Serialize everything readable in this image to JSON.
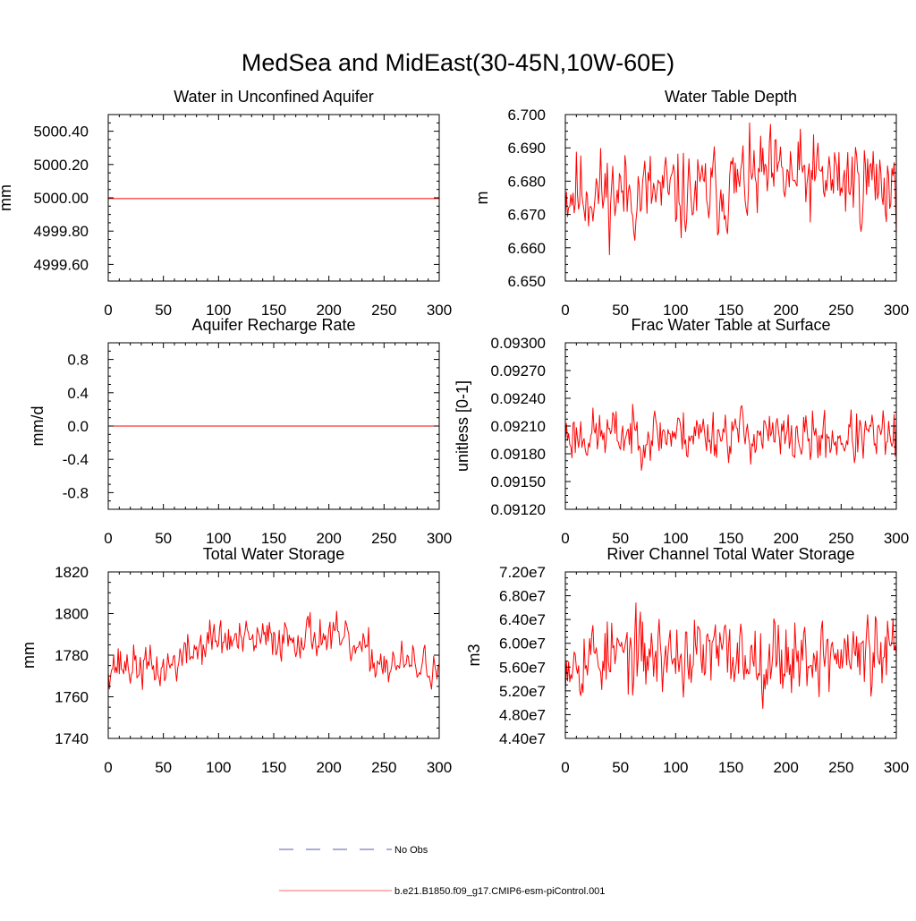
{
  "figure": {
    "title": "MedSea and MidEast(30-45N,10W-60E)"
  },
  "legend": {
    "entries": [
      {
        "label": "No Obs",
        "style": "dashed",
        "color": "#5a5aa8"
      },
      {
        "label": "b.e21.B1850.f09_g17.CMIP6-esm-piControl.001",
        "style": "solid",
        "color": "#ff6b6b"
      }
    ]
  },
  "chart_data": [
    {
      "type": "line",
      "title": "Water in Unconfined Aquifer",
      "ylabel": "mm",
      "xlim": [
        0,
        300
      ],
      "ylim": [
        4999.5,
        5000.5
      ],
      "xticks": [
        0,
        50,
        100,
        150,
        200,
        250,
        300
      ],
      "xtick_labels": [
        "0",
        "50",
        "100",
        "150",
        "200",
        "250",
        "300"
      ],
      "yticks": [
        4999.6,
        4999.8,
        5000.0,
        5000.2,
        5000.4
      ],
      "ytick_labels": [
        "4999.60",
        "4999.80",
        "5000.00",
        "5000.20",
        "5000.40"
      ],
      "series": [
        {
          "name": "b.e21.B1850.f09_g17.CMIP6-esm-piControl.001",
          "color": "#ff0000",
          "generator": {
            "kind": "constant",
            "mean": 4999.995,
            "n": 301
          }
        }
      ]
    },
    {
      "type": "line",
      "title": "Water Table Depth",
      "ylabel": "m",
      "xlim": [
        0,
        300
      ],
      "ylim": [
        6.65,
        6.7
      ],
      "xticks": [
        0,
        50,
        100,
        150,
        200,
        250,
        300
      ],
      "xtick_labels": [
        "0",
        "50",
        "100",
        "150",
        "200",
        "250",
        "300"
      ],
      "yticks": [
        6.65,
        6.66,
        6.67,
        6.68,
        6.69,
        6.7
      ],
      "ytick_labels": [
        "6.650",
        "6.660",
        "6.670",
        "6.680",
        "6.690",
        "6.700"
      ],
      "series": [
        {
          "name": "b.e21.B1850.f09_g17.CMIP6-esm-piControl.001",
          "color": "#ff0000",
          "generator": {
            "kind": "noise",
            "mean": 6.677,
            "amp": 0.0085,
            "min": 6.6525,
            "max": 6.6985,
            "n": 301,
            "seed": 11,
            "trend": [
              [
                0,
                0
              ],
              [
                120,
                -0.0015
              ],
              [
                180,
                0.004
              ],
              [
                300,
                0.003
              ]
            ]
          }
        }
      ]
    },
    {
      "type": "line",
      "title": "Aquifer Recharge Rate",
      "ylabel": "mm/d",
      "xlim": [
        0,
        300
      ],
      "ylim": [
        -1.0,
        1.0
      ],
      "xticks": [
        0,
        50,
        100,
        150,
        200,
        250,
        300
      ],
      "xtick_labels": [
        "0",
        "50",
        "100",
        "150",
        "200",
        "250",
        "300"
      ],
      "yticks": [
        -0.8,
        -0.4,
        0.0,
        0.4,
        0.8
      ],
      "ytick_labels": [
        "-0.8",
        "-0.4",
        "0.0",
        "0.4",
        "0.8"
      ],
      "series": [
        {
          "name": "b.e21.B1850.f09_g17.CMIP6-esm-piControl.001",
          "color": "#ff0000",
          "generator": {
            "kind": "constant",
            "mean": 0.0,
            "n": 301
          }
        }
      ]
    },
    {
      "type": "line",
      "title": "Frac Water Table at Surface",
      "ylabel": "unitless [0-1]",
      "xlim": [
        0,
        300
      ],
      "ylim": [
        0.0912,
        0.093
      ],
      "xticks": [
        0,
        50,
        100,
        150,
        200,
        250,
        300
      ],
      "xtick_labels": [
        "0",
        "50",
        "100",
        "150",
        "200",
        "250",
        "300"
      ],
      "yticks": [
        0.0912,
        0.0915,
        0.0918,
        0.0921,
        0.0924,
        0.0927,
        0.093
      ],
      "ytick_labels": [
        "0.09120",
        "0.09150",
        "0.09180",
        "0.09210",
        "0.09240",
        "0.09270",
        "0.09300"
      ],
      "series": [
        {
          "name": "b.e21.B1850.f09_g17.CMIP6-esm-piControl.001",
          "color": "#ff0000",
          "generator": {
            "kind": "noise",
            "mean": 0.092,
            "amp": 0.00018,
            "min": 0.09137,
            "max": 0.09298,
            "n": 301,
            "seed": 23,
            "trend": [
              [
                0,
                0
              ],
              [
                160,
                3e-05
              ],
              [
                200,
                -4e-05
              ],
              [
                300,
                -2e-05
              ]
            ]
          }
        }
      ]
    },
    {
      "type": "line",
      "title": "Total Water Storage",
      "ylabel": "mm",
      "xlim": [
        0,
        300
      ],
      "ylim": [
        1740,
        1820
      ],
      "xticks": [
        0,
        50,
        100,
        150,
        200,
        250,
        300
      ],
      "xtick_labels": [
        "0",
        "50",
        "100",
        "150",
        "200",
        "250",
        "300"
      ],
      "yticks": [
        1740,
        1760,
        1780,
        1800,
        1820
      ],
      "ytick_labels": [
        "1740",
        "1760",
        "1780",
        "1800",
        "1820"
      ],
      "series": [
        {
          "name": "b.e21.B1850.f09_g17.CMIP6-esm-piControl.001",
          "color": "#ff0000",
          "generator": {
            "kind": "noise",
            "mean": 1776,
            "amp": 6.5,
            "min": 1749,
            "max": 1818,
            "n": 301,
            "seed": 37,
            "trend": [
              [
                0,
                0
              ],
              [
                50,
                -3
              ],
              [
                95,
                12
              ],
              [
                125,
                10
              ],
              [
                150,
                12
              ],
              [
                185,
                14
              ],
              [
                205,
                12
              ],
              [
                250,
                0
              ],
              [
                300,
                -2
              ]
            ]
          }
        }
      ]
    },
    {
      "type": "line",
      "title": "River Channel Total Water Storage",
      "ylabel": "m3",
      "xlim": [
        0,
        300
      ],
      "ylim": [
        44000000,
        72000000
      ],
      "xticks": [
        0,
        50,
        100,
        150,
        200,
        250,
        300
      ],
      "xtick_labels": [
        "0",
        "50",
        "100",
        "150",
        "200",
        "250",
        "300"
      ],
      "yticks": [
        44000000,
        48000000,
        52000000,
        56000000,
        60000000,
        64000000,
        68000000,
        72000000
      ],
      "ytick_labels": [
        "4.40e7",
        "4.80e7",
        "5.20e7",
        "5.60e7",
        "6.00e7",
        "6.40e7",
        "6.80e7",
        "7.20e7"
      ],
      "series": [
        {
          "name": "b.e21.B1850.f09_g17.CMIP6-esm-piControl.001",
          "color": "#ff0000",
          "generator": {
            "kind": "noise",
            "mean": 58000000,
            "amp": 4200000,
            "min": 44200000,
            "max": 71500000,
            "n": 301,
            "seed": 53,
            "trend": [
              [
                0,
                0
              ],
              [
                300,
                0
              ]
            ]
          }
        }
      ]
    }
  ]
}
